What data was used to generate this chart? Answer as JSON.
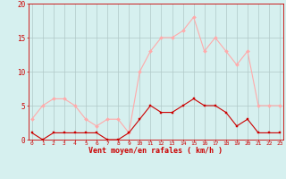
{
  "hours": [
    0,
    1,
    2,
    3,
    4,
    5,
    6,
    7,
    8,
    9,
    10,
    11,
    12,
    13,
    14,
    15,
    16,
    17,
    18,
    19,
    20,
    21,
    22,
    23
  ],
  "vent_moyen": [
    1,
    0,
    1,
    1,
    1,
    1,
    1,
    0,
    0,
    1,
    3,
    5,
    4,
    4,
    5,
    6,
    5,
    5,
    4,
    2,
    3,
    1,
    1,
    1
  ],
  "rafales": [
    3,
    5,
    6,
    6,
    5,
    3,
    2,
    3,
    3,
    1,
    10,
    13,
    15,
    15,
    16,
    18,
    13,
    15,
    13,
    11,
    13,
    5,
    5,
    5
  ],
  "line_color_moyen": "#cc0000",
  "line_color_rafales": "#ffaaaa",
  "marker_color_moyen": "#cc0000",
  "marker_color_rafales": "#ffaaaa",
  "bg_color": "#d6f0ef",
  "grid_color": "#b0c8c8",
  "xlabel": "Vent moyen/en rafales ( km/h )",
  "xlabel_color": "#cc0000",
  "tick_color": "#cc0000",
  "ylim": [
    0,
    20
  ],
  "yticks": [
    0,
    5,
    10,
    15,
    20
  ]
}
